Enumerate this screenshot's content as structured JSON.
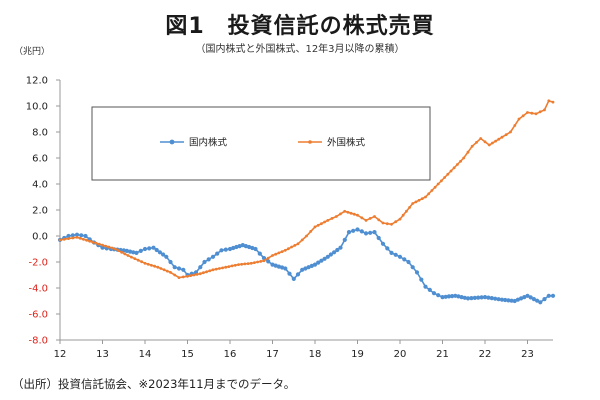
{
  "chart_data": {
    "type": "line",
    "title": "図1　投資信託の株式売買",
    "subtitle": "（国内株式と外国株式、12年3月以降の累積）",
    "ylabel": "（兆円）",
    "xlabel": "",
    "ylim": [
      -8.0,
      12.0
    ],
    "yticks": [
      "12.0",
      "10.0",
      "8.0",
      "6.0",
      "4.0",
      "2.0",
      "0.0",
      "-2.0",
      "-4.0",
      "-6.0",
      "-8.0"
    ],
    "ytick_values": [
      12,
      10,
      8,
      6,
      4,
      2,
      0,
      -2,
      -4,
      -6,
      -8
    ],
    "xlim": [
      12,
      23.6
    ],
    "xticks": [
      "12",
      "13",
      "14",
      "15",
      "16",
      "17",
      "18",
      "19",
      "20",
      "21",
      "22",
      "23"
    ],
    "xtick_values": [
      12,
      13,
      14,
      15,
      16,
      17,
      18,
      19,
      20,
      21,
      22,
      23
    ],
    "grid": false,
    "legend_position": "top-left",
    "series": [
      {
        "name": "国内株式",
        "color": "#4f8fd1",
        "points": [
          [
            12.0,
            -0.3
          ],
          [
            12.2,
            0.0
          ],
          [
            12.4,
            0.1
          ],
          [
            12.6,
            0.0
          ],
          [
            12.8,
            -0.5
          ],
          [
            13.0,
            -0.9
          ],
          [
            13.2,
            -1.0
          ],
          [
            13.5,
            -1.1
          ],
          [
            13.8,
            -1.3
          ],
          [
            14.0,
            -1.0
          ],
          [
            14.2,
            -0.9
          ],
          [
            14.5,
            -1.6
          ],
          [
            14.7,
            -2.4
          ],
          [
            14.9,
            -2.6
          ],
          [
            15.0,
            -3.0
          ],
          [
            15.2,
            -2.8
          ],
          [
            15.4,
            -2.0
          ],
          [
            15.6,
            -1.6
          ],
          [
            15.8,
            -1.1
          ],
          [
            16.0,
            -1.0
          ],
          [
            16.3,
            -0.7
          ],
          [
            16.6,
            -1.0
          ],
          [
            16.8,
            -1.7
          ],
          [
            17.0,
            -2.2
          ],
          [
            17.3,
            -2.5
          ],
          [
            17.5,
            -3.3
          ],
          [
            17.7,
            -2.6
          ],
          [
            18.0,
            -2.2
          ],
          [
            18.3,
            -1.6
          ],
          [
            18.6,
            -0.9
          ],
          [
            18.8,
            0.3
          ],
          [
            19.0,
            0.5
          ],
          [
            19.2,
            0.2
          ],
          [
            19.4,
            0.3
          ],
          [
            19.6,
            -0.6
          ],
          [
            19.8,
            -1.3
          ],
          [
            20.0,
            -1.6
          ],
          [
            20.2,
            -2.0
          ],
          [
            20.4,
            -2.8
          ],
          [
            20.6,
            -3.9
          ],
          [
            20.8,
            -4.4
          ],
          [
            21.0,
            -4.7
          ],
          [
            21.3,
            -4.6
          ],
          [
            21.6,
            -4.8
          ],
          [
            22.0,
            -4.7
          ],
          [
            22.4,
            -4.9
          ],
          [
            22.7,
            -5.0
          ],
          [
            23.0,
            -4.6
          ],
          [
            23.3,
            -5.1
          ],
          [
            23.5,
            -4.6
          ],
          [
            23.6,
            -4.6
          ]
        ]
      },
      {
        "name": "外国株式",
        "color": "#ed7d31",
        "points": [
          [
            12.0,
            -0.3
          ],
          [
            12.2,
            -0.2
          ],
          [
            12.4,
            -0.1
          ],
          [
            12.7,
            -0.4
          ],
          [
            13.0,
            -0.7
          ],
          [
            13.3,
            -1.0
          ],
          [
            13.6,
            -1.5
          ],
          [
            14.0,
            -2.1
          ],
          [
            14.3,
            -2.4
          ],
          [
            14.6,
            -2.8
          ],
          [
            14.8,
            -3.2
          ],
          [
            15.0,
            -3.1
          ],
          [
            15.3,
            -2.9
          ],
          [
            15.6,
            -2.6
          ],
          [
            15.9,
            -2.4
          ],
          [
            16.2,
            -2.2
          ],
          [
            16.5,
            -2.1
          ],
          [
            16.8,
            -1.9
          ],
          [
            17.0,
            -1.5
          ],
          [
            17.3,
            -1.1
          ],
          [
            17.6,
            -0.6
          ],
          [
            17.8,
            0.0
          ],
          [
            18.0,
            0.7
          ],
          [
            18.3,
            1.2
          ],
          [
            18.5,
            1.5
          ],
          [
            18.7,
            1.9
          ],
          [
            19.0,
            1.6
          ],
          [
            19.2,
            1.2
          ],
          [
            19.4,
            1.5
          ],
          [
            19.6,
            1.0
          ],
          [
            19.8,
            0.9
          ],
          [
            20.0,
            1.3
          ],
          [
            20.3,
            2.5
          ],
          [
            20.6,
            3.0
          ],
          [
            20.9,
            4.0
          ],
          [
            21.2,
            5.0
          ],
          [
            21.5,
            6.0
          ],
          [
            21.7,
            6.9
          ],
          [
            21.9,
            7.5
          ],
          [
            22.1,
            7.0
          ],
          [
            22.4,
            7.6
          ],
          [
            22.6,
            8.0
          ],
          [
            22.8,
            9.0
          ],
          [
            23.0,
            9.5
          ],
          [
            23.2,
            9.4
          ],
          [
            23.4,
            9.7
          ],
          [
            23.5,
            10.4
          ],
          [
            23.6,
            10.3
          ]
        ]
      }
    ]
  },
  "source_note": "（出所）投資信託協会、※2023年11月までのデータ。"
}
